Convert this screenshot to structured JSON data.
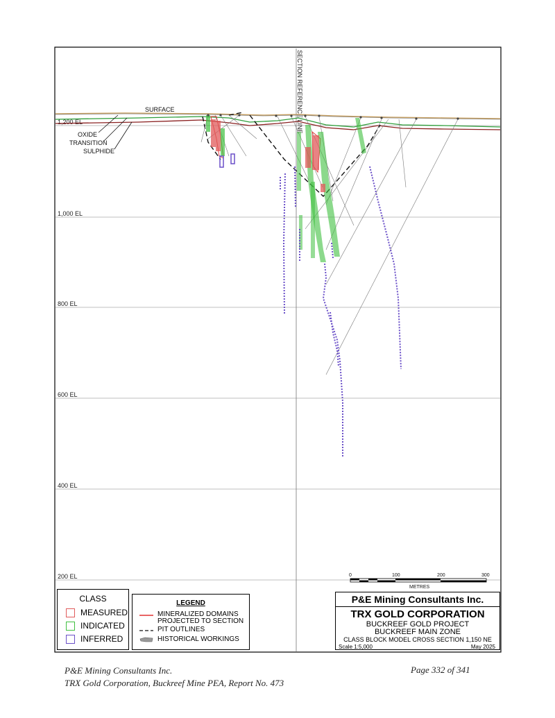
{
  "section": {
    "reference_line_label": "SECTION REFERENCE LINE",
    "surface_label": "SURFACE",
    "zone_labels": [
      "OXIDE",
      "TRANSITION",
      "SULPHIDE"
    ],
    "elevations": [
      {
        "label": "1,200 EL",
        "value": 1200
      },
      {
        "label": "1,000 EL",
        "value": 1000
      },
      {
        "label": "800 EL",
        "value": 800
      },
      {
        "label": "600 EL",
        "value": 600
      },
      {
        "label": "400 EL",
        "value": 400
      },
      {
        "label": "200 EL",
        "value": 200
      }
    ],
    "colors": {
      "measured": "#e05a5a",
      "indicated": "#3fbf3f",
      "inferred": "#6a4fc8",
      "surface": "#c8a060",
      "oxide_line": "#2e9e3a",
      "sulphide_line": "#8a2020",
      "mineralized_domain": "#e03030"
    }
  },
  "scale_bar": {
    "ticks": [
      "0",
      "100",
      "200",
      "300"
    ],
    "unit": "METRES"
  },
  "class_legend": {
    "title": "CLASS",
    "items": [
      {
        "label": "MEASURED",
        "color": "#e05a5a"
      },
      {
        "label": "INDICATED",
        "color": "#3fbf3f"
      },
      {
        "label": "INFERRED",
        "color": "#6a4fc8"
      }
    ]
  },
  "legend": {
    "title": "LEGEND",
    "items": [
      {
        "label_line1": "MINERALIZED DOMAINS",
        "label_line2": "PROJECTED TO SECTION",
        "symbol": "red-line"
      },
      {
        "label_line1": "PIT OUTLINES",
        "label_line2": "",
        "symbol": "dashed-line"
      },
      {
        "label_line1": "HISTORICAL WORKINGS",
        "label_line2": "",
        "symbol": "grey-shape"
      }
    ]
  },
  "title_block": {
    "firm": "P&E Mining Consultants Inc.",
    "company": "TRX GOLD CORPORATION",
    "project": "BUCKREEF GOLD PROJECT",
    "zone": "BUCKREEF MAIN ZONE",
    "drawing": "CLASS BLOCK MODEL CROSS SECTION 1,150 NE",
    "scale": "Scale 1:5,000",
    "date": "May 2025"
  },
  "footer": {
    "left_line1": "P&E Mining Consultants Inc.",
    "left_line2": "TRX Gold Corporation, Buckreef Mine PEA, Report No. 473",
    "right": "Page 332 of 341"
  }
}
